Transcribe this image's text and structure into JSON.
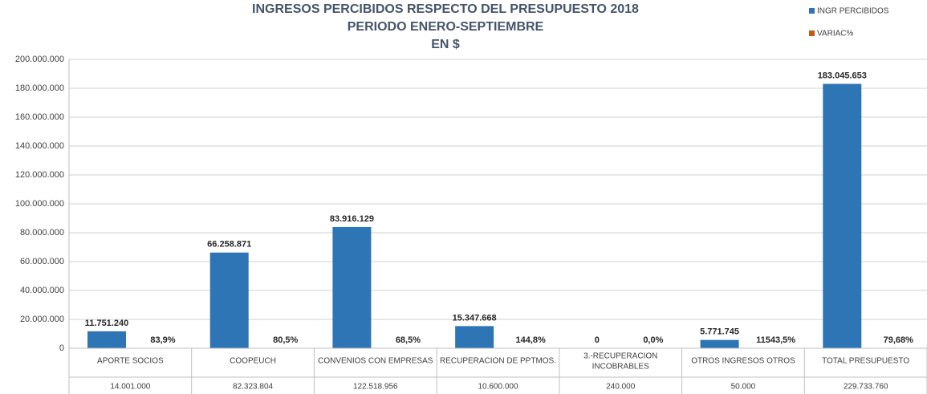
{
  "chart_data": {
    "type": "bar",
    "title": [
      "INGRESOS  PERCIBIDOS RESPECTO DEL PRESUPUESTO 2018",
      "PERIODO ENERO-SEPTIEMBRE",
      "EN $"
    ],
    "categories": [
      "APORTE SOCIOS",
      "COOPEUCH",
      "CONVENIOS CON EMPRESAS",
      "RECUPERACION DE PPTMOS.",
      [
        "3.-RECUPERACION",
        "INCOBRABLES"
      ],
      "OTROS INGRESOS OTROS",
      "TOTAL PRESUPUESTO"
    ],
    "series": [
      {
        "name": "INGR PERCIBIDOS",
        "color": "#2e75b6",
        "values": [
          11751240,
          66258871,
          83916129,
          15347668,
          0,
          5771745,
          183045653
        ],
        "value_labels": [
          "11.751.240",
          "66.258.871",
          "83.916.129",
          "15.347.668",
          "0",
          "5.771.745",
          "183.045.653"
        ]
      },
      {
        "name": "VARIAC%",
        "color": "#c55a11",
        "values": [
          83.9,
          80.5,
          68.5,
          144.8,
          0,
          11543.5,
          79.68
        ],
        "value_labels": [
          "83,9%",
          "80,5%",
          "68,5%",
          "144,8%",
          "0,0%",
          "11543,5%",
          "79,68%"
        ]
      }
    ],
    "table_row": [
      "14.001.000",
      "82.323.804",
      "122.518.956",
      "10.600.000",
      "240.000",
      "50.000",
      "229.733.760"
    ],
    "ylim": [
      0,
      200000000
    ],
    "yticks": [
      0,
      {
        "value": 20000000,
        "label": "20.000.000"
      },
      {
        "value": 40000000,
        "label": "40.000.000"
      },
      {
        "value": 60000000,
        "label": "60.000.000"
      },
      {
        "value": 80000000,
        "label": "80.000.000"
      },
      {
        "value": 100000000,
        "label": "100.000.000"
      },
      {
        "value": 120000000,
        "label": "120.000.000"
      },
      {
        "value": 140000000,
        "label": "140.000.000"
      },
      {
        "value": 160000000,
        "label": "160.000.000"
      },
      {
        "value": 180000000,
        "label": "180.000.000"
      },
      {
        "value": 200000000,
        "label": "200.000.000"
      }
    ],
    "grid": true,
    "legend": "top-right"
  }
}
